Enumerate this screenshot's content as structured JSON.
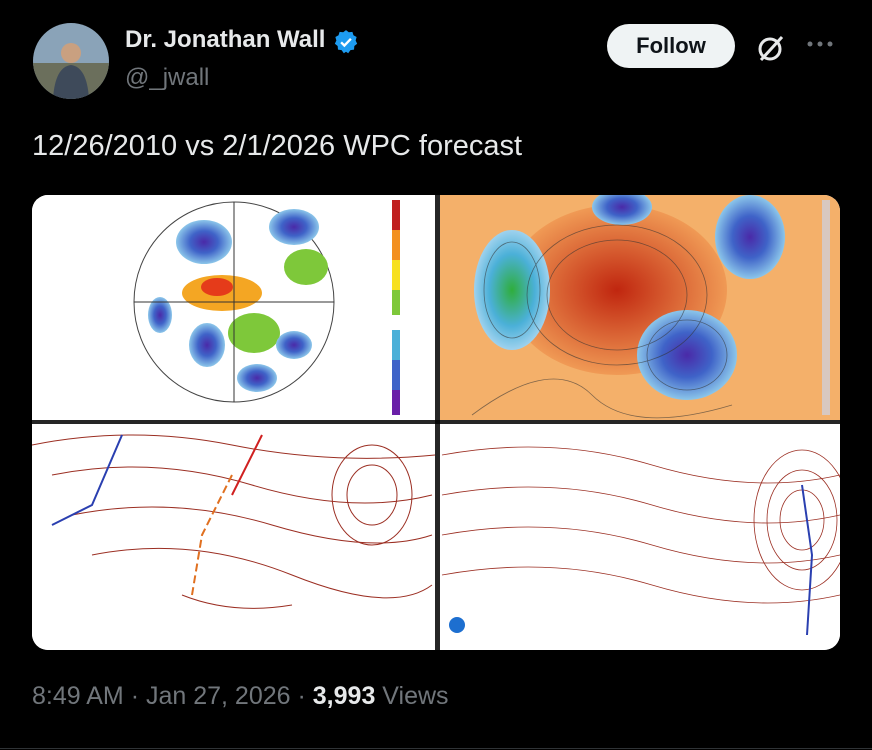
{
  "author": {
    "name": "Dr. Jonathan Wall",
    "handle": "@_jwall"
  },
  "follow_button": "Follow",
  "tweet": {
    "text": "12/26/2010 vs 2/1/2026 WPC forecast"
  },
  "meta": {
    "time": "8:49 AM",
    "separator": "·",
    "date": "Jan 27, 2026",
    "views_count": "3,993",
    "views_label": "Views"
  }
}
